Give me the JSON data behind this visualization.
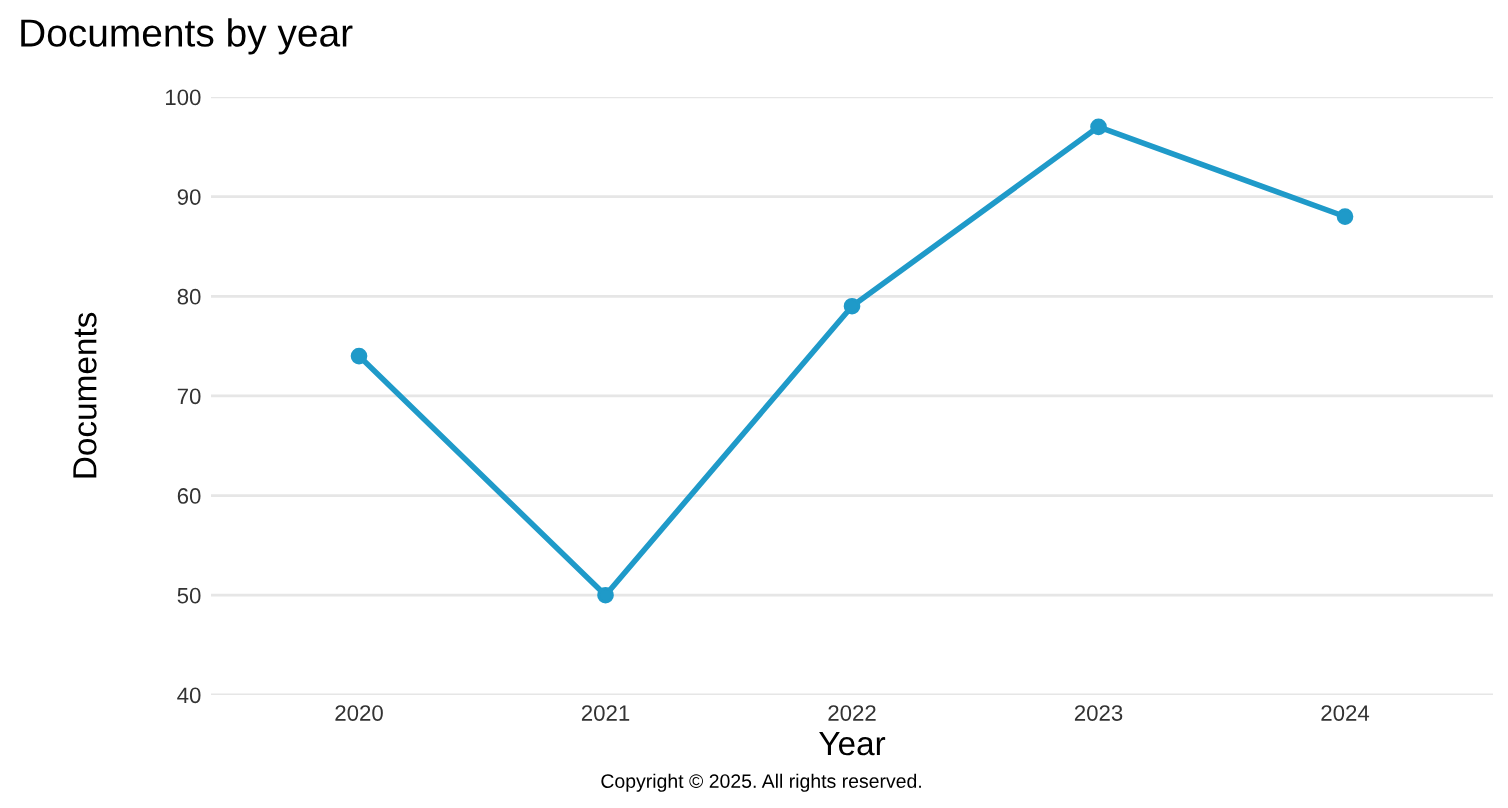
{
  "chart_data": {
    "type": "line",
    "title": "Documents by year",
    "xlabel": "Year",
    "ylabel": "Documents",
    "categories": [
      "2020",
      "2021",
      "2022",
      "2023",
      "2024"
    ],
    "series": [
      {
        "color": "#1f9ac9",
        "values": [
          74,
          50,
          79,
          97,
          88
        ]
      }
    ],
    "ylim": [
      40,
      100
    ],
    "yticks": [
      40,
      50,
      60,
      70,
      80,
      90,
      100
    ],
    "grid": "y",
    "marker": "circle",
    "line_style": "solid",
    "annotations": [
      "Copyright © 2025. All rights reserved."
    ]
  }
}
